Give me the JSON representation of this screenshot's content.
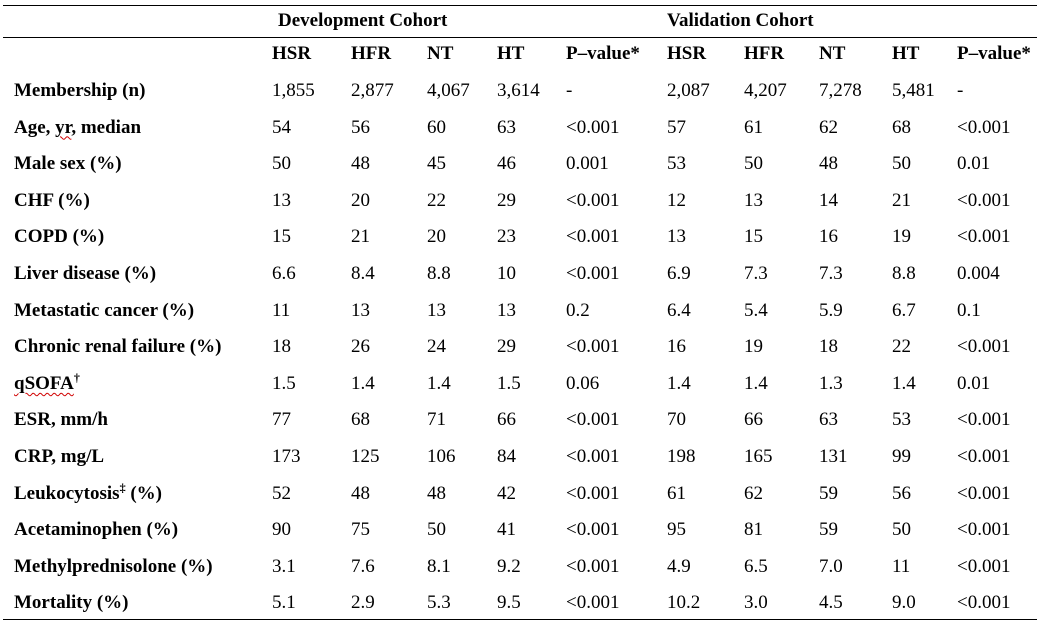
{
  "groups": {
    "development": "Development Cohort",
    "validation": "Validation Cohort"
  },
  "columns": [
    "HSR",
    "HFR",
    "NT",
    "HT",
    "P–value*",
    "HSR",
    "HFR",
    "NT",
    "HT",
    "P–value*"
  ],
  "rows": [
    {
      "label": "Membership (n)",
      "values": [
        "1,855",
        "2,877",
        "4,067",
        "3,614",
        "-",
        "2,087",
        "4,207",
        "7,278",
        "5,481",
        "-"
      ]
    },
    {
      "label": "Age, yr, median",
      "values": [
        "54",
        "56",
        "60",
        "63",
        "<0.001",
        "57",
        "61",
        "62",
        "68",
        "<0.001"
      ]
    },
    {
      "label": "Male sex (%)",
      "values": [
        "50",
        "48",
        "45",
        "46",
        "0.001",
        "53",
        "50",
        "48",
        "50",
        "0.01"
      ]
    },
    {
      "label": "CHF (%)",
      "values": [
        "13",
        "20",
        "22",
        "29",
        "<0.001",
        "12",
        "13",
        "14",
        "21",
        "<0.001"
      ]
    },
    {
      "label": "COPD (%)",
      "values": [
        "15",
        "21",
        "20",
        "23",
        "<0.001",
        "13",
        "15",
        "16",
        "19",
        "<0.001"
      ]
    },
    {
      "label": "Liver disease (%)",
      "values": [
        "6.6",
        "8.4",
        "8.8",
        "10",
        "<0.001",
        "6.9",
        "7.3",
        "7.3",
        "8.8",
        "0.004"
      ]
    },
    {
      "label": "Metastatic cancer (%)",
      "values": [
        "11",
        "13",
        "13",
        "13",
        "0.2",
        "6.4",
        "5.4",
        "5.9",
        "6.7",
        "0.1"
      ]
    },
    {
      "label": "Chronic renal failure (%)",
      "values": [
        "18",
        "26",
        "24",
        "29",
        "<0.001",
        "16",
        "19",
        "18",
        "22",
        "<0.001"
      ]
    },
    {
      "label": "qSOFA",
      "sup": "†",
      "values": [
        "1.5",
        "1.4",
        "1.4",
        "1.5",
        "0.06",
        "1.4",
        "1.4",
        "1.3",
        "1.4",
        "0.01"
      ]
    },
    {
      "label": "ESR, mm/h",
      "values": [
        "77",
        "68",
        "71",
        "66",
        "<0.001",
        "70",
        "66",
        "63",
        "53",
        "<0.001"
      ]
    },
    {
      "label": "CRP, mg/L",
      "values": [
        "173",
        "125",
        "106",
        "84",
        "<0.001",
        "198",
        "165",
        "131",
        "99",
        "<0.001"
      ]
    },
    {
      "label": "Leukocytosis",
      "sup": "‡",
      "suffix": " (%)",
      "values": [
        "52",
        "48",
        "48",
        "42",
        "<0.001",
        "61",
        "62",
        "59",
        "56",
        "<0.001"
      ]
    },
    {
      "label": "Acetaminophen (%)",
      "values": [
        "90",
        "75",
        "50",
        "41",
        "<0.001",
        "95",
        "81",
        "59",
        "50",
        "<0.001"
      ]
    },
    {
      "label": "Methylprednisolone (%)",
      "values": [
        "3.1",
        "7.6",
        "8.1",
        "9.2",
        "<0.001",
        "4.9",
        "6.5",
        "7.0",
        "11",
        "<0.001"
      ]
    },
    {
      "label": "Mortality (%)",
      "values": [
        "5.1",
        "2.9",
        "5.3",
        "9.5",
        "<0.001",
        "10.2",
        "3.0",
        "4.5",
        "9.0",
        "<0.001"
      ]
    }
  ]
}
